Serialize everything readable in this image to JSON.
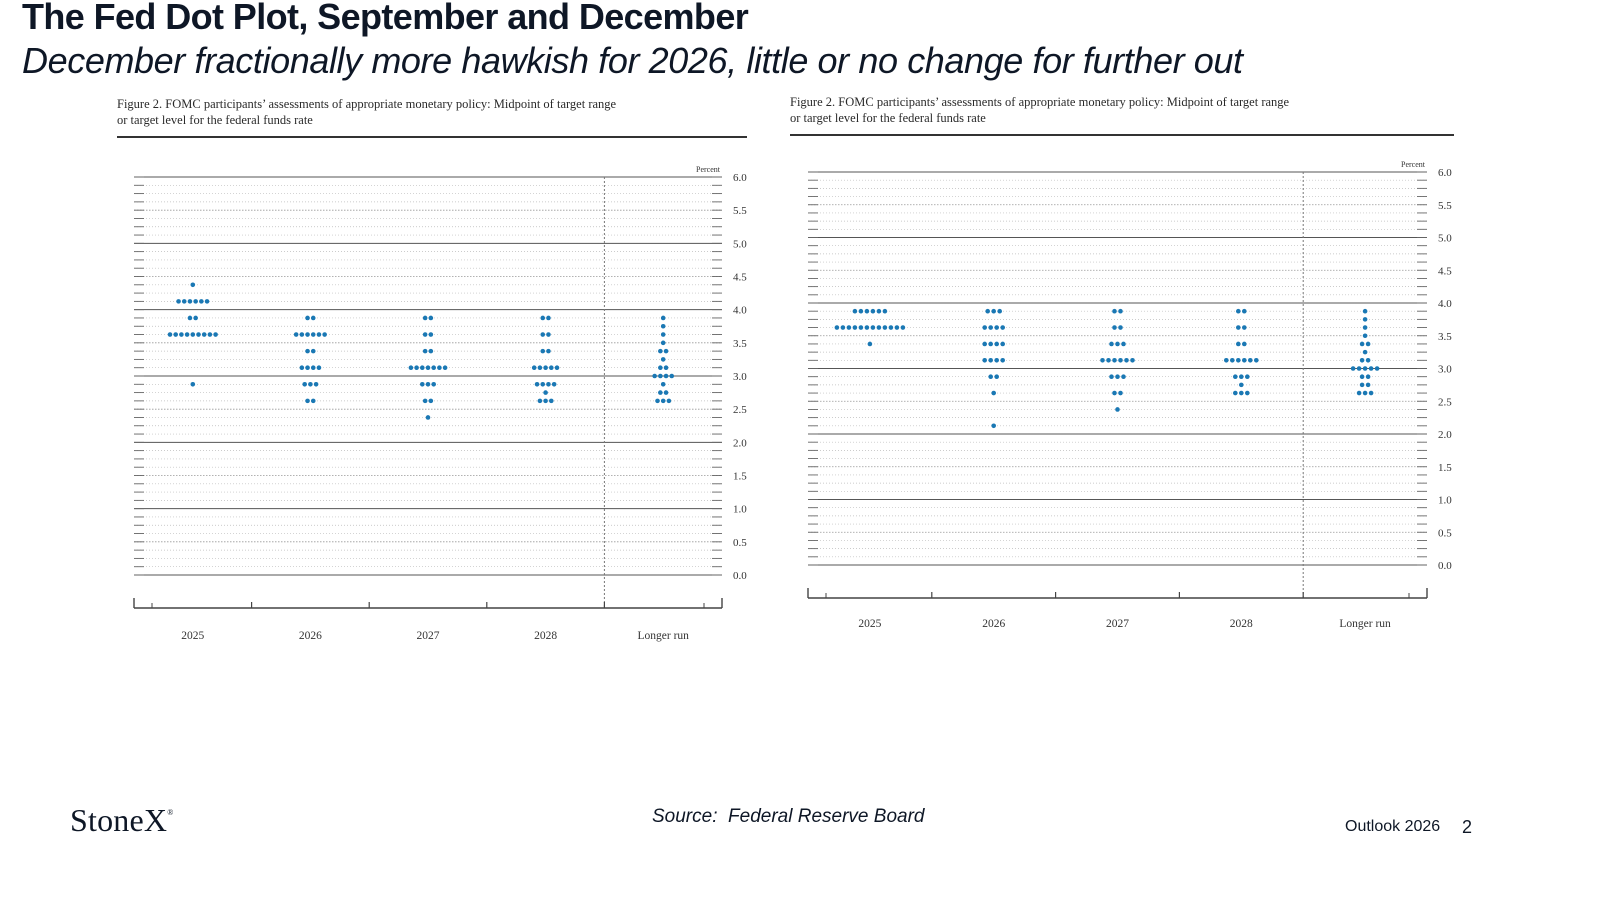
{
  "slide": {
    "title": "The Fed Dot Plot, September and December",
    "subtitle": "December fractionally more hawkish for 2026, little or no change for further out",
    "source": "Source:  Federal Reserve Board",
    "footer_label": "Outlook 2026",
    "page_number": "2",
    "logo_text": "StoneX",
    "logo_mark": "®"
  },
  "colors": {
    "dot": "#1a78b4",
    "text": "#0e1726"
  },
  "chart_data": [
    {
      "type": "scatter",
      "title": "Figure 2.  FOMC participants’ assessments of appropriate monetary policy:  Midpoint of target range or target level for the federal funds rate",
      "title_lines": [
        "Figure 2.  FOMC participants’ assessments of appropriate monetary policy:  Midpoint of target range",
        "or target level for the federal funds rate"
      ],
      "ylabel": "Percent",
      "ylim": [
        0,
        6
      ],
      "yticks": [
        "6.0",
        "5.5",
        "5.0",
        "4.5",
        "4.0",
        "3.5",
        "3.0",
        "2.5",
        "2.0",
        "1.5",
        "1.0",
        "0.5",
        "0.0"
      ],
      "categories": [
        "2025",
        "2026",
        "2027",
        "2028",
        "Longer run"
      ],
      "dots": [
        [
          {
            "y": 4.375,
            "n": 1
          },
          {
            "y": 4.125,
            "n": 6
          },
          {
            "y": 3.875,
            "n": 2
          },
          {
            "y": 3.625,
            "n": 9
          },
          {
            "y": 2.875,
            "n": 1
          }
        ],
        [
          {
            "y": 3.875,
            "n": 2
          },
          {
            "y": 3.625,
            "n": 6
          },
          {
            "y": 3.375,
            "n": 2
          },
          {
            "y": 3.125,
            "n": 4
          },
          {
            "y": 2.875,
            "n": 3
          },
          {
            "y": 2.625,
            "n": 2
          }
        ],
        [
          {
            "y": 3.875,
            "n": 2
          },
          {
            "y": 3.625,
            "n": 2
          },
          {
            "y": 3.375,
            "n": 2
          },
          {
            "y": 3.125,
            "n": 7
          },
          {
            "y": 2.875,
            "n": 3
          },
          {
            "y": 2.625,
            "n": 2
          },
          {
            "y": 2.375,
            "n": 1
          }
        ],
        [
          {
            "y": 3.875,
            "n": 2
          },
          {
            "y": 3.625,
            "n": 2
          },
          {
            "y": 3.375,
            "n": 2
          },
          {
            "y": 3.125,
            "n": 5
          },
          {
            "y": 2.875,
            "n": 4
          },
          {
            "y": 2.75,
            "n": 1
          },
          {
            "y": 2.625,
            "n": 3
          }
        ],
        [
          {
            "y": 3.875,
            "n": 1
          },
          {
            "y": 3.75,
            "n": 1
          },
          {
            "y": 3.625,
            "n": 1
          },
          {
            "y": 3.5,
            "n": 1
          },
          {
            "y": 3.375,
            "n": 2
          },
          {
            "y": 3.25,
            "n": 1
          },
          {
            "y": 3.125,
            "n": 2
          },
          {
            "y": 3.0,
            "n": 4
          },
          {
            "y": 2.875,
            "n": 1
          },
          {
            "y": 2.75,
            "n": 2
          },
          {
            "y": 2.625,
            "n": 3
          }
        ]
      ]
    },
    {
      "type": "scatter",
      "title": "Figure 2.  FOMC participants’ assessments of appropriate monetary policy:  Midpoint of target range or target level for the federal funds rate",
      "title_lines": [
        "Figure 2.  FOMC participants’ assessments of appropriate monetary policy:  Midpoint of target range",
        "or target level for the federal funds rate"
      ],
      "ylabel": "Percent",
      "ylim": [
        0,
        6
      ],
      "yticks": [
        "6.0",
        "5.5",
        "5.0",
        "4.5",
        "4.0",
        "3.5",
        "3.0",
        "2.5",
        "2.0",
        "1.5",
        "1.0",
        "0.5",
        "0.0"
      ],
      "categories": [
        "2025",
        "2026",
        "2027",
        "2028",
        "Longer run"
      ],
      "dots": [
        [
          {
            "y": 3.875,
            "n": 6
          },
          {
            "y": 3.625,
            "n": 12
          },
          {
            "y": 3.375,
            "n": 1
          }
        ],
        [
          {
            "y": 3.875,
            "n": 3
          },
          {
            "y": 3.625,
            "n": 4
          },
          {
            "y": 3.375,
            "n": 4
          },
          {
            "y": 3.125,
            "n": 4
          },
          {
            "y": 2.875,
            "n": 2
          },
          {
            "y": 2.625,
            "n": 1
          },
          {
            "y": 2.125,
            "n": 1
          }
        ],
        [
          {
            "y": 3.875,
            "n": 2
          },
          {
            "y": 3.625,
            "n": 2
          },
          {
            "y": 3.375,
            "n": 3
          },
          {
            "y": 3.125,
            "n": 6
          },
          {
            "y": 2.875,
            "n": 3
          },
          {
            "y": 2.625,
            "n": 2
          },
          {
            "y": 2.375,
            "n": 1
          }
        ],
        [
          {
            "y": 3.875,
            "n": 2
          },
          {
            "y": 3.625,
            "n": 2
          },
          {
            "y": 3.375,
            "n": 2
          },
          {
            "y": 3.125,
            "n": 6
          },
          {
            "y": 2.875,
            "n": 3
          },
          {
            "y": 2.75,
            "n": 1
          },
          {
            "y": 2.625,
            "n": 3
          }
        ],
        [
          {
            "y": 3.875,
            "n": 1
          },
          {
            "y": 3.75,
            "n": 1
          },
          {
            "y": 3.625,
            "n": 1
          },
          {
            "y": 3.5,
            "n": 1
          },
          {
            "y": 3.375,
            "n": 2
          },
          {
            "y": 3.25,
            "n": 1
          },
          {
            "y": 3.125,
            "n": 2
          },
          {
            "y": 3.0,
            "n": 5
          },
          {
            "y": 2.875,
            "n": 2
          },
          {
            "y": 2.75,
            "n": 2
          },
          {
            "y": 2.625,
            "n": 3
          }
        ]
      ]
    }
  ]
}
